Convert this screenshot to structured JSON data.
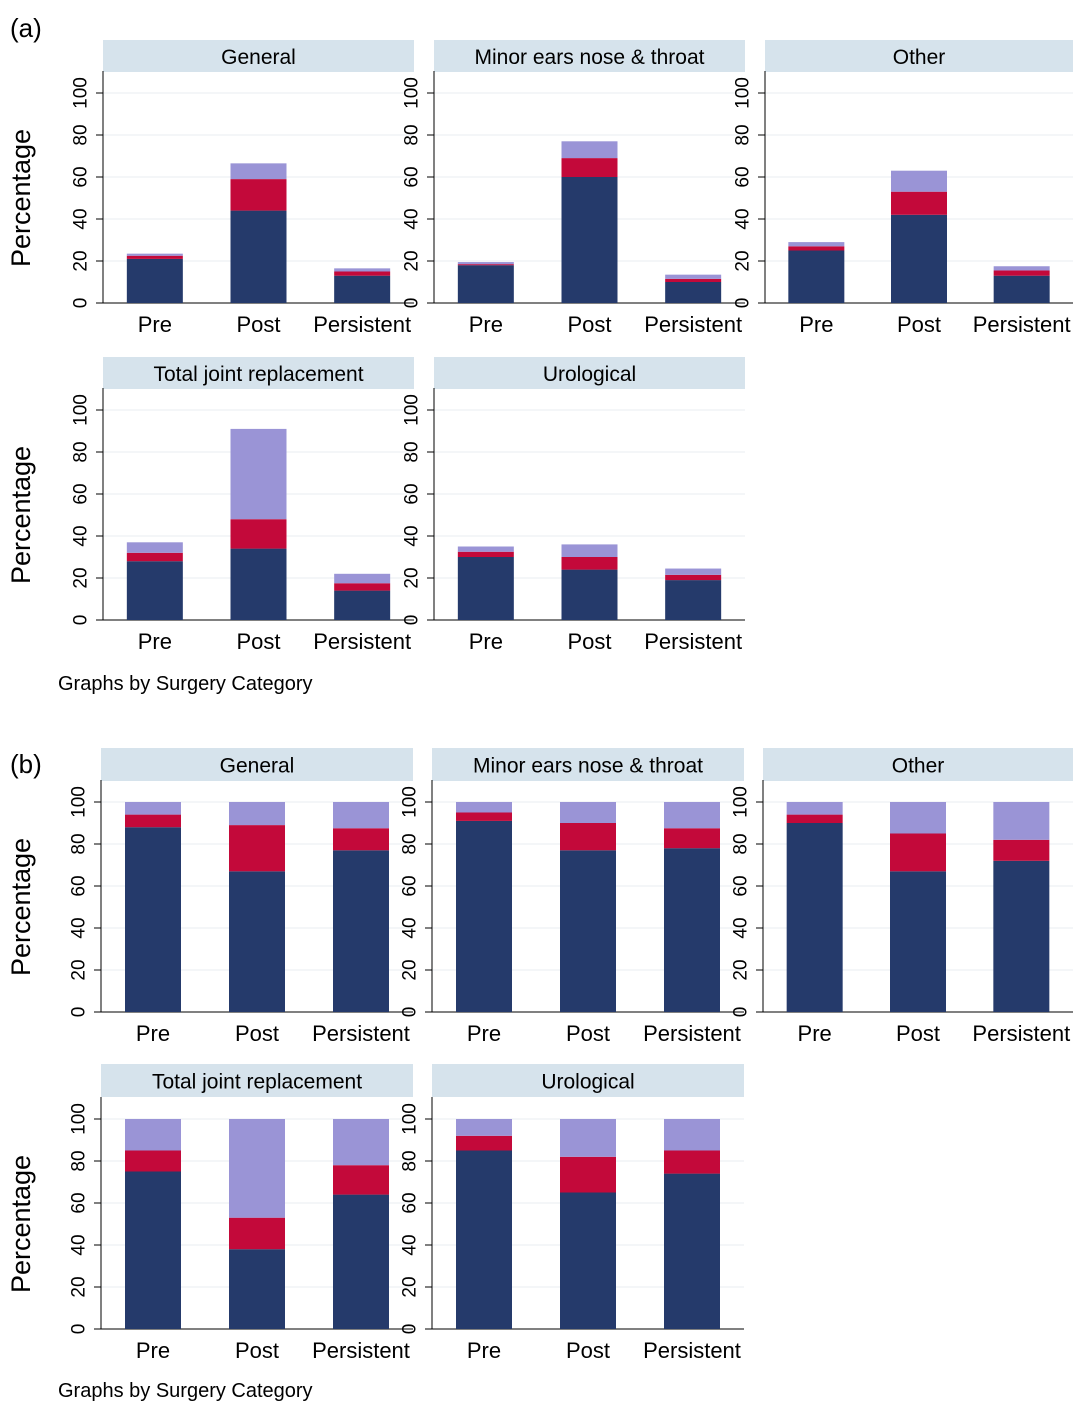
{
  "colors": {
    "lower": "#253a6b",
    "middle": "#c3093a",
    "upper": "#9a94d6",
    "strip_bg": "#d6e3ec",
    "grid": "#e8edf1",
    "axis": "#000000"
  },
  "chart_data": [
    {
      "type": "bar",
      "stacked": true,
      "panel_label": "(a)",
      "ylabel": "Percentage",
      "ylim": [
        0,
        100
      ],
      "yticks": [
        0,
        20,
        40,
        60,
        80,
        100
      ],
      "grid": true,
      "categories": [
        "Pre",
        "Post",
        "Persistent"
      ],
      "note": "Graphs by Surgery Category",
      "facets": [
        {
          "title": "General",
          "series": [
            {
              "values": [
                21,
                44,
                13
              ]
            },
            {
              "values": [
                1.5,
                15,
                2
              ]
            },
            {
              "values": [
                1,
                7.5,
                1.5
              ]
            }
          ]
        },
        {
          "title": "Minor ears nose & throat",
          "series": [
            {
              "values": [
                18,
                60,
                10
              ]
            },
            {
              "values": [
                0.5,
                9,
                1.5
              ]
            },
            {
              "values": [
                1,
                8,
                2
              ]
            }
          ]
        },
        {
          "title": "Other",
          "series": [
            {
              "values": [
                25,
                42,
                13
              ]
            },
            {
              "values": [
                2,
                11,
                2.5
              ]
            },
            {
              "values": [
                2,
                10,
                2
              ]
            }
          ]
        },
        {
          "title": "Total joint replacement",
          "series": [
            {
              "values": [
                28,
                34,
                14
              ]
            },
            {
              "values": [
                4,
                14,
                3.5
              ]
            },
            {
              "values": [
                5,
                43,
                4.5
              ]
            }
          ]
        },
        {
          "title": "Urological",
          "series": [
            {
              "values": [
                30,
                24,
                19
              ]
            },
            {
              "values": [
                2.5,
                6,
                2.5
              ]
            },
            {
              "values": [
                2.5,
                6,
                3
              ]
            }
          ]
        }
      ]
    },
    {
      "type": "bar",
      "stacked": true,
      "panel_label": "(b)",
      "ylabel": "Percentage",
      "ylim": [
        0,
        100
      ],
      "yticks": [
        0,
        20,
        40,
        60,
        80,
        100
      ],
      "grid": true,
      "categories": [
        "Pre",
        "Post",
        "Persistent"
      ],
      "note": "Graphs by Surgery Category",
      "facets": [
        {
          "title": "General",
          "series": [
            {
              "values": [
                88,
                67,
                77
              ]
            },
            {
              "values": [
                6,
                22,
                10.5
              ]
            },
            {
              "values": [
                6,
                11,
                12.5
              ]
            }
          ]
        },
        {
          "title": "Minor ears nose & throat",
          "series": [
            {
              "values": [
                91,
                77,
                78
              ]
            },
            {
              "values": [
                4,
                13,
                9.5
              ]
            },
            {
              "values": [
                5,
                10,
                12.5
              ]
            }
          ]
        },
        {
          "title": "Other",
          "series": [
            {
              "values": [
                90,
                67,
                72
              ]
            },
            {
              "values": [
                4,
                18,
                10
              ]
            },
            {
              "values": [
                6,
                15,
                18
              ]
            }
          ]
        },
        {
          "title": "Total joint replacement",
          "series": [
            {
              "values": [
                75,
                38,
                64
              ]
            },
            {
              "values": [
                10,
                15,
                14
              ]
            },
            {
              "values": [
                15,
                47,
                22
              ]
            }
          ]
        },
        {
          "title": "Urological",
          "series": [
            {
              "values": [
                85,
                65,
                74
              ]
            },
            {
              "values": [
                7,
                17,
                11
              ]
            },
            {
              "values": [
                8,
                18,
                15
              ]
            }
          ]
        }
      ]
    }
  ]
}
